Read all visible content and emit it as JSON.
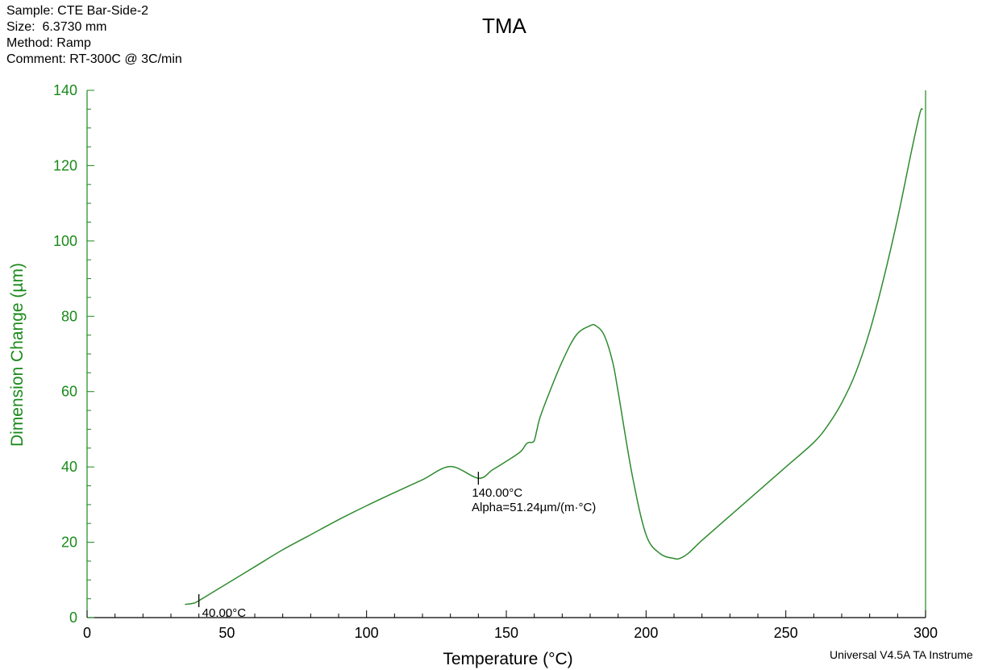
{
  "header": {
    "sample": "Sample: CTE Bar-Side-2",
    "size": "Size:  6.3730 mm",
    "method": "Method: Ramp",
    "comment": "Comment: RT-300C @ 3C/min"
  },
  "footer": "Universal V4.5A TA Instrume",
  "colors": {
    "curve": "#2e8b2e",
    "y_axis": "#1a8a1a",
    "x_axis": "#000000"
  },
  "chart_data": {
    "type": "line",
    "title": "TMA",
    "xlabel": "Temperature (°C)",
    "ylabel": "Dimension Change (µm)",
    "xlim": [
      0,
      300
    ],
    "ylim": [
      0,
      140
    ],
    "x_ticks": [
      0,
      50,
      100,
      150,
      200,
      250,
      300
    ],
    "y_ticks": [
      0,
      20,
      40,
      60,
      80,
      100,
      120,
      140
    ],
    "grid": false,
    "series": [
      {
        "x": [
          35,
          38,
          40,
          50,
          60,
          70,
          80,
          90,
          100,
          110,
          120,
          130,
          140,
          145,
          150,
          155,
          157,
          158,
          159,
          160,
          161,
          162,
          165,
          170,
          175,
          180,
          182,
          185,
          188,
          190,
          195,
          200,
          205,
          210,
          212,
          215,
          220,
          230,
          240,
          250,
          260,
          265,
          270,
          275,
          280,
          285,
          290,
          295,
          298,
          299
        ],
        "y": [
          3.5,
          3.8,
          4.5,
          9.0,
          13.5,
          18.0,
          22.0,
          26.0,
          29.7,
          33.2,
          36.6,
          40.1,
          37.0,
          39.2,
          41.5,
          44.0,
          46.0,
          46.5,
          46.5,
          47.0,
          50.0,
          53.0,
          59.0,
          68.0,
          75.0,
          77.5,
          77.5,
          75.0,
          68.0,
          60.0,
          38.0,
          22.0,
          17.0,
          15.7,
          15.7,
          17.0,
          20.5,
          27.0,
          33.5,
          40.0,
          46.5,
          51.0,
          57.0,
          65.0,
          76.0,
          90.0,
          106.0,
          124.0,
          134.0,
          135.0
        ]
      }
    ],
    "markers": [
      {
        "x": 40,
        "y": 4.5,
        "label": "40.00°C"
      },
      {
        "x": 140,
        "y": 37.0,
        "label": "140.00°C"
      }
    ],
    "annotations": {
      "alpha": "Alpha=51.24µm/(m·°C)"
    }
  }
}
